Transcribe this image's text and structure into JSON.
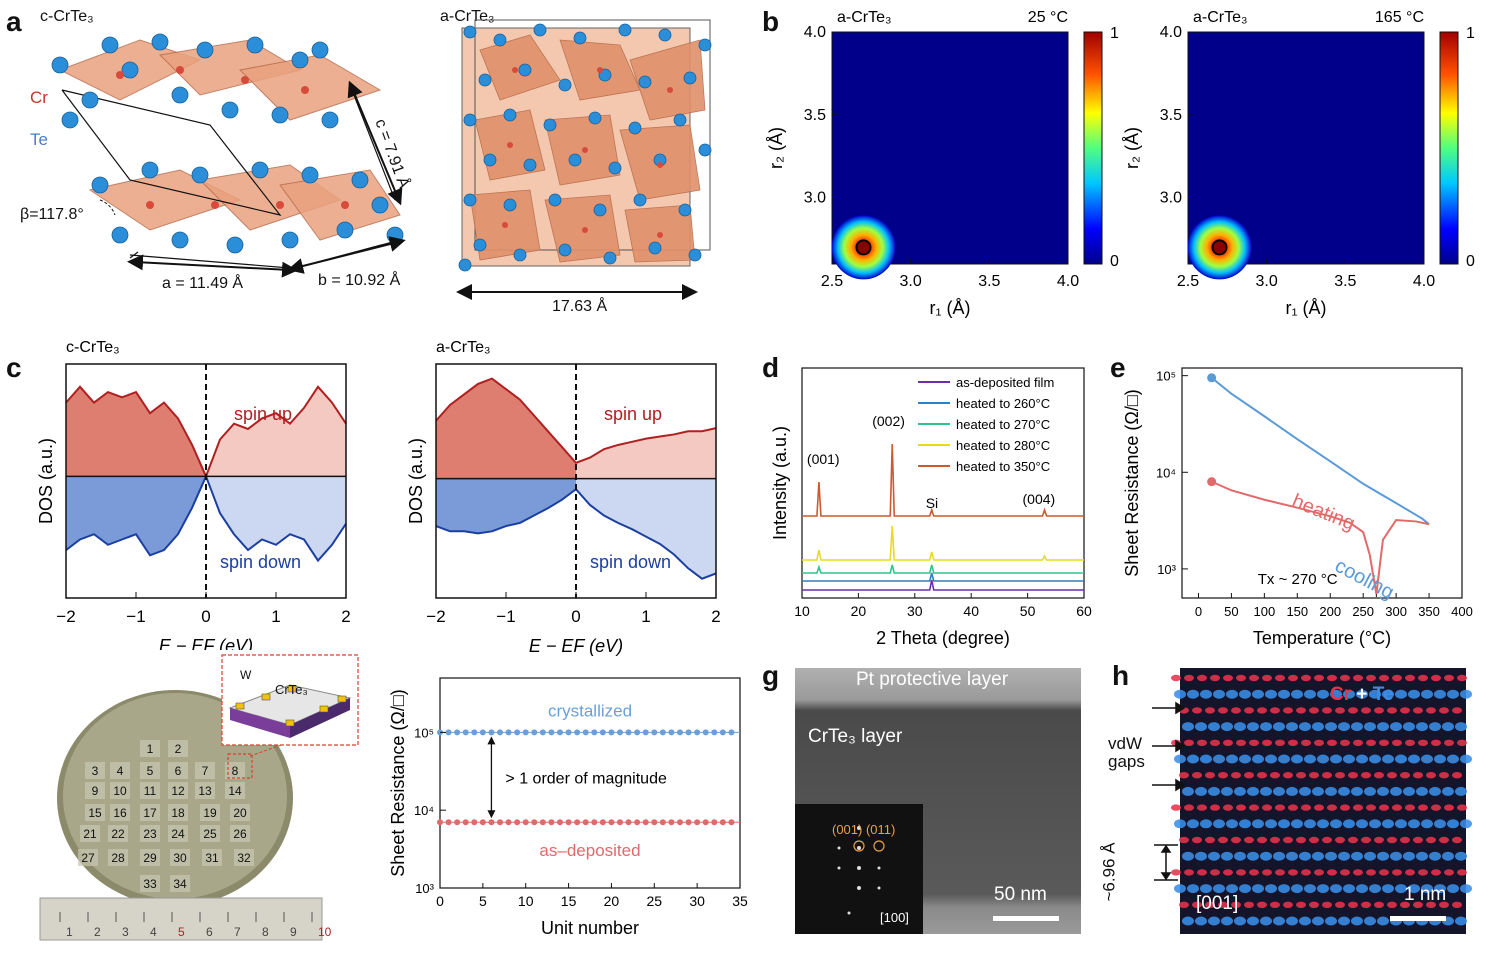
{
  "panels": {
    "a": {
      "letter": "a",
      "c_title": "c-CrTe₃",
      "a_title": "a-CrTe₃",
      "cr_label": "Cr",
      "te_label": "Te",
      "lattice_a": "a = 11.49 Å",
      "lattice_b": "b = 10.92 Å",
      "lattice_c": "c = 7.91 Å",
      "beta": "β=117.8°",
      "cell_amorph": "17.63 Å"
    },
    "b": {
      "letter": "b",
      "maps": [
        {
          "material": "a-CrTe₃",
          "temp": "25 °C"
        },
        {
          "material": "a-CrTe₃",
          "temp": "165 °C"
        }
      ],
      "xlabel": "r₁ (Å)",
      "ylabel": "r₂ (Å)",
      "colorbar_max": "1",
      "colorbar_min": "0"
    },
    "c": {
      "letter": "c",
      "left_title": "c-CrTe₃",
      "right_title": "a-CrTe₃",
      "spin_up": "spin up",
      "spin_down": "spin down",
      "ylabel": "DOS (a.u.)",
      "xlabel": "E − EF (eV)"
    },
    "d": {
      "letter": "d",
      "ylabel": "Intensity (a.u.)",
      "xlabel": "2 Theta (degree)",
      "peaks": [
        "(001)",
        "(002)",
        "Si",
        "(004)"
      ]
    },
    "e": {
      "letter": "e",
      "ylabel": "Sheet Resistance (Ω/□)",
      "xlabel": "Temperature (°C)",
      "cooling": "cooling",
      "heating": "heating",
      "tx": "Tx ~ 270 °C"
    },
    "f": {
      "letter": "f",
      "inset_w": "W",
      "inset_film": "CrTe₃",
      "ylabel": "Sheet Resistance (Ω/□)",
      "xlabel": "Unit number",
      "crystallized": "crystallized",
      "deposited": "as–deposited",
      "gap_label": "> 1 order of magnitude",
      "cells": [
        "1",
        "2",
        "3",
        "4",
        "5",
        "6",
        "7",
        "8",
        "9",
        "10",
        "11",
        "12",
        "13",
        "14",
        "15",
        "16",
        "17",
        "18",
        "19",
        "20",
        "21",
        "22",
        "23",
        "24",
        "25",
        "26",
        "27",
        "28",
        "29",
        "30",
        "31",
        "32",
        "33",
        "34"
      ],
      "ruler": [
        "1",
        "2",
        "3",
        "4",
        "5",
        "6",
        "7",
        "8",
        "9",
        "10"
      ]
    },
    "g": {
      "letter": "g",
      "pt_layer": "Pt protective layer",
      "film_layer": "CrTe₃ layer",
      "scale": "50 nm",
      "fft_spots": "(001) (011)",
      "zone": "[100]"
    },
    "h": {
      "letter": "h",
      "legend_cr": "Cr",
      "legend_plus": "+",
      "legend_te": "Te",
      "vdw": "vdW",
      "gaps": "gaps",
      "spacing": "~6.96 Å",
      "zone": "[001]",
      "scale": "1 nm"
    }
  },
  "chart_data": [
    {
      "type": "heatmap",
      "id": "b-left",
      "title": "a-CrTe₃ 25 °C",
      "xlabel": "r₁ (Å)",
      "ylabel": "r₂ (Å)",
      "xlim": [
        2.5,
        4.0
      ],
      "ylim": [
        2.6,
        4.0
      ],
      "xticks": [
        "2.5",
        "3.0",
        "3.5",
        "4.0"
      ],
      "yticks": [
        "3.0",
        "3.5",
        "4.0"
      ],
      "peak": {
        "r1": 2.7,
        "r2": 2.7,
        "value": 1
      },
      "colorbar": [
        0,
        1
      ]
    },
    {
      "type": "heatmap",
      "id": "b-right",
      "title": "a-CrTe₃ 165 °C",
      "xlabel": "r₁ (Å)",
      "ylabel": "r₂ (Å)",
      "xlim": [
        2.5,
        4.0
      ],
      "ylim": [
        2.6,
        4.0
      ],
      "xticks": [
        "2.5",
        "3.0",
        "3.5",
        "4.0"
      ],
      "yticks": [
        "3.0",
        "3.5",
        "4.0"
      ],
      "peak": {
        "r1": 2.7,
        "r2": 2.7,
        "value": 1
      },
      "colorbar": [
        0,
        1
      ]
    },
    {
      "type": "area",
      "id": "c-left",
      "title": "c-CrTe₃",
      "xlabel": "E − EF (eV)",
      "ylabel": "DOS (a.u.)",
      "xlim": [
        -2,
        2
      ],
      "xticks": [
        "−2",
        "−1",
        "0",
        "1",
        "2"
      ],
      "x": [
        -2,
        -1.8,
        -1.6,
        -1.4,
        -1.2,
        -1,
        -0.8,
        -0.6,
        -0.4,
        -0.2,
        0,
        0.2,
        0.4,
        0.6,
        0.8,
        1,
        1.2,
        1.4,
        1.6,
        1.8,
        2
      ],
      "series": [
        {
          "name": "spin up",
          "values": [
            0.7,
            0.85,
            0.7,
            0.8,
            0.75,
            0.8,
            0.6,
            0.7,
            0.55,
            0.3,
            0.0,
            0.35,
            0.5,
            0.45,
            0.55,
            0.6,
            0.5,
            0.65,
            0.85,
            0.7,
            0.5
          ]
        },
        {
          "name": "spin down",
          "values": [
            -0.7,
            -0.6,
            -0.55,
            -0.65,
            -0.6,
            -0.55,
            -0.75,
            -0.7,
            -0.55,
            -0.3,
            0.0,
            -0.35,
            -0.55,
            -0.7,
            -0.6,
            -0.65,
            -0.55,
            -0.6,
            -0.8,
            -0.65,
            -0.45
          ]
        }
      ]
    },
    {
      "type": "area",
      "id": "c-right",
      "title": "a-CrTe₃",
      "xlabel": "E − EF (eV)",
      "ylabel": "DOS (a.u.)",
      "xlim": [
        -2,
        2
      ],
      "xticks": [
        "−2",
        "−1",
        "0",
        "1",
        "2"
      ],
      "x": [
        -2,
        -1.8,
        -1.6,
        -1.4,
        -1.2,
        -1,
        -0.8,
        -0.6,
        -0.4,
        -0.2,
        0,
        0.2,
        0.4,
        0.6,
        0.8,
        1,
        1.2,
        1.4,
        1.6,
        1.8,
        2
      ],
      "series": [
        {
          "name": "spin up",
          "values": [
            0.55,
            0.7,
            0.8,
            0.9,
            0.95,
            0.85,
            0.75,
            0.6,
            0.45,
            0.3,
            0.15,
            0.2,
            0.28,
            0.32,
            0.35,
            0.38,
            0.4,
            0.42,
            0.45,
            0.45,
            0.48
          ]
        },
        {
          "name": "spin down",
          "values": [
            -0.45,
            -0.5,
            -0.5,
            -0.52,
            -0.5,
            -0.45,
            -0.42,
            -0.35,
            -0.28,
            -0.2,
            -0.1,
            -0.25,
            -0.35,
            -0.42,
            -0.48,
            -0.55,
            -0.62,
            -0.72,
            -0.85,
            -0.95,
            -0.9
          ]
        }
      ]
    },
    {
      "type": "line",
      "id": "d",
      "xlabel": "2 Theta (degree)",
      "ylabel": "Intensity (a.u.)",
      "xlim": [
        10,
        60
      ],
      "xticks": [
        "10",
        "20",
        "30",
        "40",
        "50",
        "60"
      ],
      "series": [
        {
          "name": "as-deposited film",
          "color": "#6a2fb0",
          "peaks": [
            33
          ]
        },
        {
          "name": "heated to 260°C",
          "color": "#2f7fc4",
          "peaks": [
            33
          ]
        },
        {
          "name": "heated to 270°C",
          "color": "#2ec58c",
          "peaks": [
            13,
            26,
            33
          ]
        },
        {
          "name": "heated to 280°C",
          "color": "#e6dc1c",
          "peaks": [
            13,
            26,
            33,
            53
          ]
        },
        {
          "name": "heated to 350°C",
          "color": "#cc5a2c",
          "peaks": [
            13,
            26,
            33,
            53
          ]
        }
      ],
      "annotations": [
        "(001)",
        "(002)",
        "Si",
        "(004)"
      ]
    },
    {
      "type": "line",
      "id": "e",
      "xlabel": "Temperature (°C)",
      "ylabel": "Sheet Resistance (Ω/□)",
      "xlim": [
        -25,
        400
      ],
      "ylim": [
        500,
        120000
      ],
      "yscale": "log",
      "xticks": [
        "0",
        "50",
        "100",
        "150",
        "200",
        "250",
        "300",
        "350",
        "400"
      ],
      "yticks": [
        "10³",
        "10⁴",
        "10⁵"
      ],
      "series": [
        {
          "name": "cooling",
          "color": "#5a9ad6",
          "x": [
            20,
            50,
            100,
            150,
            200,
            250,
            300,
            340,
            350
          ],
          "y": [
            95000,
            65000,
            38000,
            22000,
            13000,
            7600,
            4800,
            3300,
            2900
          ]
        },
        {
          "name": "heating",
          "color": "#e26a6a",
          "x": [
            20,
            50,
            100,
            150,
            200,
            230,
            250,
            260,
            270,
            280,
            300,
            330,
            350
          ],
          "y": [
            8000,
            6500,
            5200,
            4300,
            3500,
            3000,
            2400,
            1400,
            550,
            2000,
            3200,
            3100,
            2900
          ]
        }
      ],
      "annotations": [
        "cooling",
        "heating",
        "Tx ~ 270 °C"
      ]
    },
    {
      "type": "scatter",
      "id": "f",
      "xlabel": "Unit number",
      "ylabel": "Sheet Resistance (Ω/□)",
      "xlim": [
        0,
        35
      ],
      "ylim": [
        1000,
        500000
      ],
      "yscale": "log",
      "xticks": [
        "0",
        "5",
        "10",
        "15",
        "20",
        "25",
        "30",
        "35"
      ],
      "yticks": [
        "10³",
        "10⁴",
        "10⁵"
      ],
      "series": [
        {
          "name": "crystallized",
          "color": "#6a9fd8",
          "value": 100000,
          "count": 34
        },
        {
          "name": "as–deposited",
          "color": "#e06a6a",
          "value": 7000,
          "count": 34
        }
      ]
    }
  ]
}
